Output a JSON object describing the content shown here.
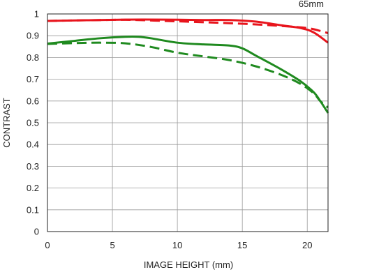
{
  "chart_data": {
    "type": "line",
    "title": "65mm",
    "xlabel": "IMAGE HEIGHT (mm)",
    "ylabel": "CONTRAST",
    "xlim": [
      0,
      21.6
    ],
    "ylim": [
      0,
      1
    ],
    "x_ticks": [
      0,
      5,
      10,
      15,
      20
    ],
    "y_ticks": [
      0,
      0.1,
      0.2,
      0.3,
      0.4,
      0.5,
      0.6,
      0.7,
      0.8,
      0.9,
      1
    ],
    "x_tick_labels": [
      "0",
      "5",
      "10",
      "15",
      "20"
    ],
    "y_tick_labels": [
      "0",
      "0.1",
      "0.2",
      "0.3",
      "0.4",
      "0.5",
      "0.6",
      "0.7",
      "0.8",
      "0.9",
      "1"
    ],
    "grid": true,
    "colors": {
      "red": "#e8141c",
      "green": "#1f8a1f",
      "grid": "#9a9a9a",
      "axis": "#222222"
    },
    "series": [
      {
        "color": "red",
        "dash": "solid",
        "x": [
          0,
          3,
          6,
          9,
          12,
          14,
          16,
          18,
          19.5,
          20.5,
          21.6
        ],
        "y": [
          0.968,
          0.971,
          0.974,
          0.974,
          0.972,
          0.972,
          0.965,
          0.948,
          0.935,
          0.915,
          0.868
        ]
      },
      {
        "color": "red",
        "dash": "dashed",
        "x": [
          0,
          3,
          6,
          9,
          12,
          15,
          18,
          20,
          21,
          21.6
        ],
        "y": [
          0.968,
          0.971,
          0.973,
          0.968,
          0.962,
          0.955,
          0.945,
          0.935,
          0.922,
          0.912
        ]
      },
      {
        "color": "green",
        "dash": "solid",
        "x": [
          0,
          2,
          4,
          6,
          7,
          8,
          10,
          12,
          14,
          15,
          16,
          18,
          19.5,
          20.5,
          21,
          21.6
        ],
        "y": [
          0.864,
          0.876,
          0.888,
          0.895,
          0.895,
          0.888,
          0.868,
          0.86,
          0.855,
          0.842,
          0.81,
          0.745,
          0.69,
          0.64,
          0.6,
          0.545
        ]
      },
      {
        "color": "green",
        "dash": "dashed",
        "x": [
          0,
          2,
          4,
          6,
          8,
          10,
          12,
          14,
          16,
          18,
          19.5,
          20.5,
          21,
          21.6
        ],
        "y": [
          0.862,
          0.866,
          0.868,
          0.865,
          0.848,
          0.822,
          0.805,
          0.788,
          0.76,
          0.72,
          0.678,
          0.635,
          0.6,
          0.57
        ]
      }
    ]
  }
}
